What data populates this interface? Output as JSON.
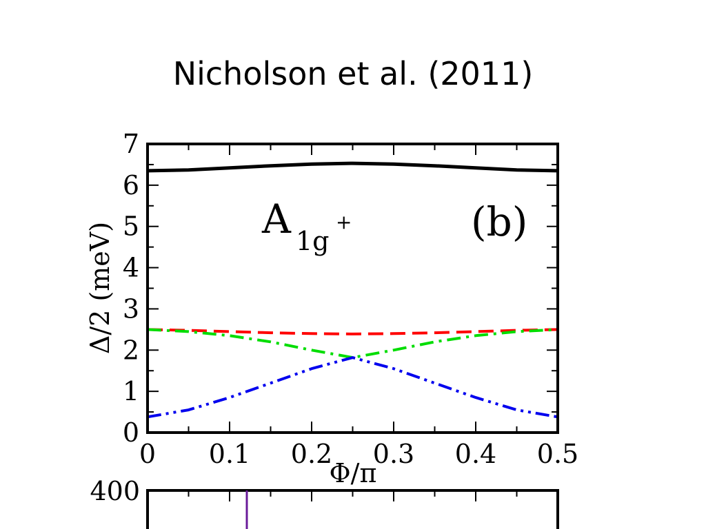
{
  "slide": {
    "title": "Nicholson et al. (2011)"
  },
  "chart_data": {
    "type": "line",
    "title": "",
    "xlabel": "Φ/π",
    "ylabel": "Δ/2 (meV)",
    "xlim": [
      0,
      0.5
    ],
    "ylim": [
      0,
      7
    ],
    "xticks": [
      "0",
      "0.1",
      "0.2",
      "0.3",
      "0.4",
      "0.5"
    ],
    "yticks": [
      "0",
      "1",
      "2",
      "3",
      "4",
      "5",
      "6",
      "7"
    ],
    "grid": false,
    "legend": "none",
    "annotations": {
      "symmetry_main": "A",
      "symmetry_sub": "1g",
      "symmetry_sup": "+",
      "panel_tag": "(b)"
    },
    "series": [
      {
        "color": "#000000",
        "style": "solid",
        "x": [
          0,
          0.05,
          0.1,
          0.15,
          0.2,
          0.25,
          0.3,
          0.35,
          0.4,
          0.45,
          0.5
        ],
        "y": [
          6.35,
          6.37,
          6.42,
          6.47,
          6.51,
          6.53,
          6.51,
          6.47,
          6.42,
          6.37,
          6.35
        ]
      },
      {
        "color": "#ff0000",
        "style": "dashed",
        "x": [
          0,
          0.05,
          0.1,
          0.15,
          0.2,
          0.25,
          0.3,
          0.35,
          0.4,
          0.45,
          0.5
        ],
        "y": [
          2.5,
          2.48,
          2.45,
          2.42,
          2.4,
          2.39,
          2.4,
          2.42,
          2.45,
          2.48,
          2.5
        ]
      },
      {
        "color": "#00dd00",
        "style": "dash-dot",
        "x": [
          0,
          0.05,
          0.1,
          0.15,
          0.2,
          0.25,
          0.3,
          0.35,
          0.4,
          0.45,
          0.5
        ],
        "y": [
          2.5,
          2.45,
          2.35,
          2.2,
          2.0,
          1.82,
          2.0,
          2.2,
          2.35,
          2.45,
          2.5
        ]
      },
      {
        "color": "#0000ee",
        "style": "dash-dot-dot",
        "x": [
          0,
          0.05,
          0.1,
          0.15,
          0.2,
          0.25,
          0.3,
          0.35,
          0.4,
          0.45,
          0.5
        ],
        "y": [
          0.38,
          0.55,
          0.85,
          1.2,
          1.55,
          1.82,
          1.55,
          1.2,
          0.85,
          0.55,
          0.38
        ]
      }
    ]
  },
  "lower_chart": {
    "ytick_top": "400"
  }
}
